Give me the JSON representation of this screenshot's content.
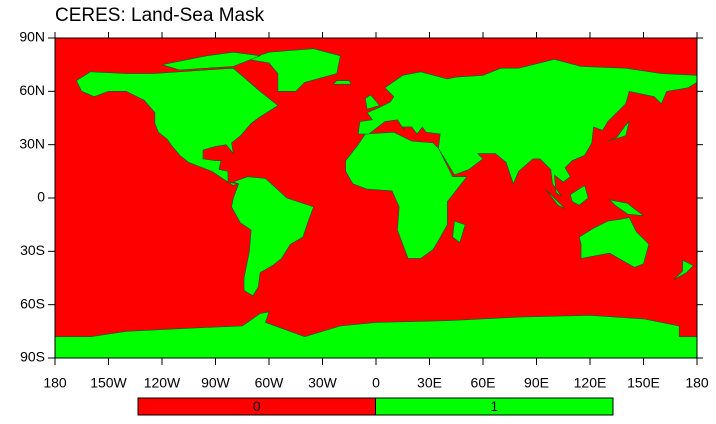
{
  "map": {
    "title": "CERES: Land-Sea Mask",
    "lon_ticks": [
      {
        "value": -180,
        "label": "180"
      },
      {
        "value": -150,
        "label": "150W"
      },
      {
        "value": -120,
        "label": "120W"
      },
      {
        "value": -90,
        "label": "90W"
      },
      {
        "value": -60,
        "label": "60W"
      },
      {
        "value": -30,
        "label": "30W"
      },
      0,
      {
        "value": 30,
        "label": "30E"
      },
      {
        "value": 60,
        "label": "60E"
      },
      {
        "value": 90,
        "label": "90E"
      },
      {
        "value": 120,
        "label": "120E"
      },
      {
        "value": 150,
        "label": "150E"
      },
      {
        "value": 180,
        "label": "180"
      }
    ],
    "lat_ticks": [
      {
        "value": 90,
        "label": "90N"
      },
      {
        "value": 60,
        "label": "60N"
      },
      {
        "value": 30,
        "label": "30N"
      },
      0,
      {
        "value": -30,
        "label": "30S"
      },
      {
        "value": -60,
        "label": "60S"
      },
      {
        "value": -90,
        "label": "90S"
      }
    ],
    "colorbar": {
      "levels": [
        0,
        1
      ],
      "colors": [
        "#ff0000",
        "#00ff00"
      ]
    }
  }
}
